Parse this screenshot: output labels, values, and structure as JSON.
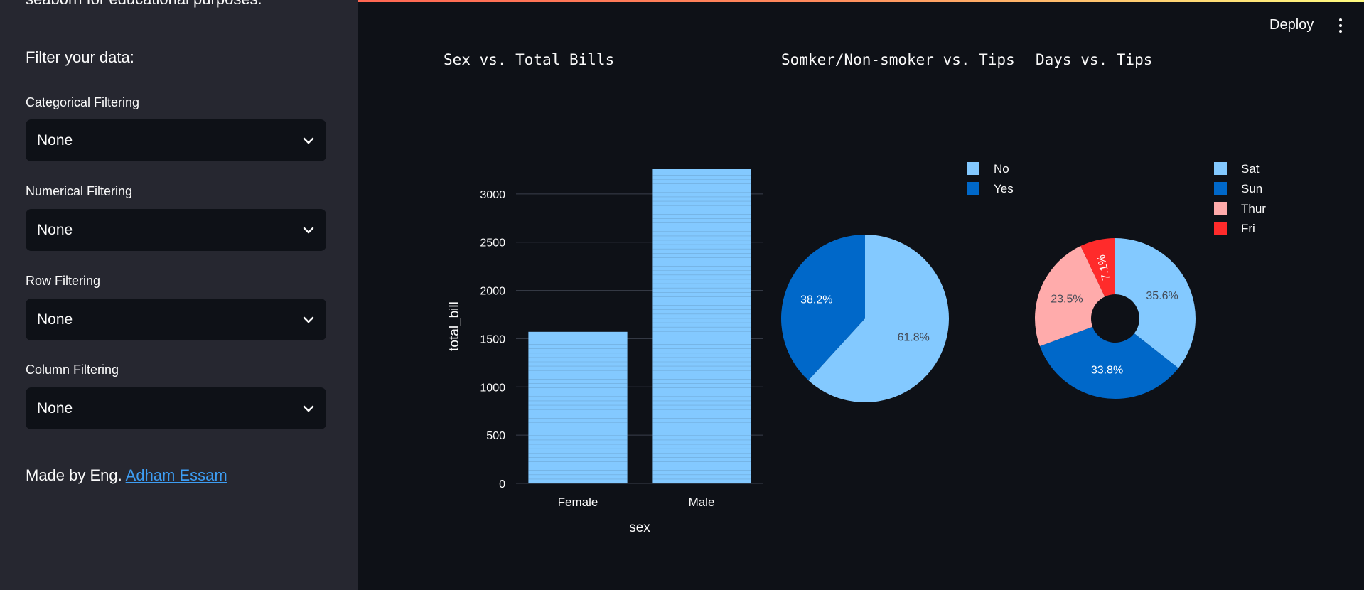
{
  "sidebar": {
    "cut_text": "seaborn for educational purposes.",
    "heading": "Filter your data:",
    "filters": [
      {
        "label": "Categorical Filtering",
        "value": "None"
      },
      {
        "label": "Numerical Filtering",
        "value": "None"
      },
      {
        "label": "Row Filtering",
        "value": "None"
      },
      {
        "label": "Column Filtering",
        "value": "None"
      }
    ],
    "credit_prefix": "Made by Eng. ",
    "credit_link": "Adham Essam"
  },
  "header": {
    "deploy_label": "Deploy"
  },
  "colors": {
    "light_blue": "#83c9ff",
    "dark_blue": "#0068c9",
    "pink": "#ffabab",
    "red": "#ff2b2b",
    "grid": "#3a3f4b",
    "text": "#fafafa",
    "dim_text": "#555c6a"
  },
  "chart_data": [
    {
      "type": "bar",
      "title": "Sex vs. Total Bills",
      "categories": [
        "Female",
        "Male"
      ],
      "values": [
        1570.95,
        3256.82
      ],
      "xlabel": "sex",
      "ylabel": "total_bill",
      "yticks": [
        0,
        500,
        1000,
        1500,
        2000,
        2500,
        3000
      ],
      "ylim": [
        0,
        3256.82
      ],
      "grid": true,
      "color": "#83c9ff"
    },
    {
      "type": "pie",
      "title": "Somker/Non-smoker vs. Tips",
      "labels": [
        "No",
        "Yes"
      ],
      "values": [
        61.8,
        38.2
      ],
      "value_labels": [
        "61.8%",
        "38.2%"
      ],
      "colors": [
        "#83c9ff",
        "#0068c9"
      ],
      "legend_position": "top-right"
    },
    {
      "type": "pie",
      "title": "Days vs. Tips",
      "labels": [
        "Sat",
        "Sun",
        "Thur",
        "Fri"
      ],
      "values": [
        35.6,
        33.8,
        23.5,
        7.1
      ],
      "value_labels": [
        "35.6%",
        "33.8%",
        "23.5%",
        "7.1%"
      ],
      "colors": [
        "#83c9ff",
        "#0068c9",
        "#ffabab",
        "#ff2b2b"
      ],
      "legend_position": "top-right",
      "hole": true
    }
  ]
}
